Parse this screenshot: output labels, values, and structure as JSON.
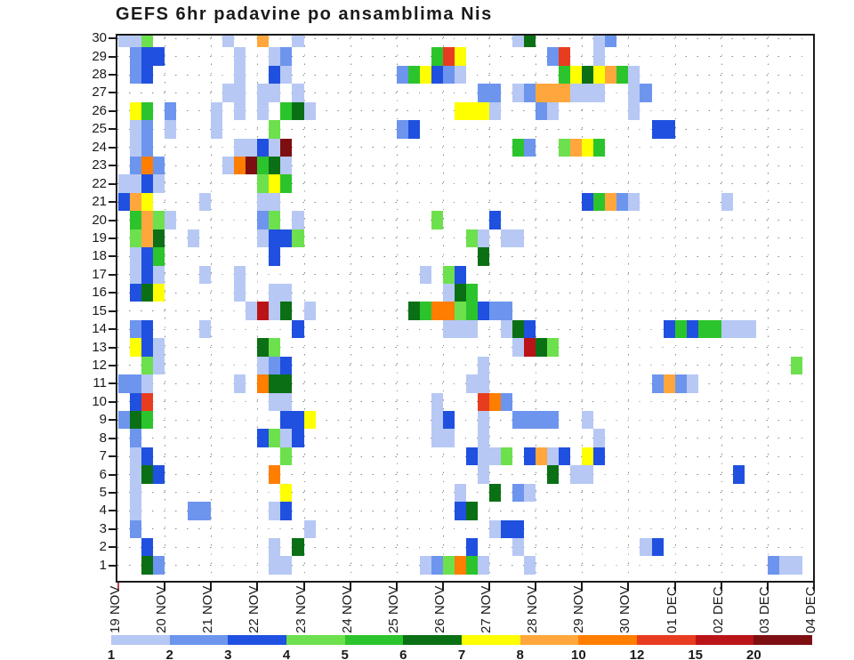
{
  "title": "GEFS 6hr padavine po ansamblima Nis",
  "chart_data": {
    "type": "heatmap",
    "title": "GEFS 6hr padavine po ansamblima Nis",
    "xlabel": "",
    "ylabel": "",
    "x_tick_labels": [
      "19 NOV",
      "20 NOV",
      "21 NOV",
      "22 NOV",
      "23 NOV",
      "24 NOV",
      "25 NOV",
      "26 NOV",
      "27 NOV",
      "28 NOV",
      "29 NOV",
      "30 NOV",
      "01 DEC",
      "02 DEC",
      "03 DEC",
      "04 DEC"
    ],
    "y_tick_labels": [
      "1",
      "2",
      "3",
      "4",
      "5",
      "6",
      "7",
      "8",
      "9",
      "10",
      "11",
      "12",
      "13",
      "14",
      "15",
      "16",
      "17",
      "18",
      "19",
      "20",
      "21",
      "22",
      "23",
      "24",
      "25",
      "26",
      "27",
      "28",
      "29",
      "30"
    ],
    "y_axis_meaning": "ensemble member",
    "x_steps_per_day": 4,
    "n_columns": 60,
    "grid": "dotted",
    "legend": {
      "position": "bottom",
      "boundary_labels": [
        "1",
        "2",
        "3",
        "4",
        "5",
        "6",
        "7",
        "8",
        "10",
        "12",
        "15",
        "20"
      ],
      "level_ranges": [
        "1-2",
        "2-3",
        "3-4",
        "4-5",
        "5-6",
        "6-7",
        "7-8",
        "8-10",
        "10-12",
        "12-15",
        "15-20",
        "20+"
      ],
      "colors": [
        "#b7c8f4",
        "#6d95ee",
        "#2050e0",
        "#6de04e",
        "#2cc42c",
        "#0b7015",
        "#ffff00",
        "#ffa73d",
        "#ff7e00",
        "#e83c20",
        "#bb1418",
        "#7d0f12"
      ]
    },
    "cells": [
      [
        30,
        0,
        1
      ],
      [
        30,
        1,
        1
      ],
      [
        30,
        2,
        4
      ],
      [
        30,
        9,
        1
      ],
      [
        30,
        12,
        8
      ],
      [
        30,
        15,
        1
      ],
      [
        30,
        34,
        1
      ],
      [
        30,
        35,
        6
      ],
      [
        30,
        41,
        1
      ],
      [
        30,
        42,
        2
      ],
      [
        29,
        1,
        2
      ],
      [
        29,
        2,
        3
      ],
      [
        29,
        3,
        3
      ],
      [
        29,
        10,
        1
      ],
      [
        29,
        13,
        1
      ],
      [
        29,
        14,
        2
      ],
      [
        29,
        27,
        5
      ],
      [
        29,
        28,
        10
      ],
      [
        29,
        29,
        7
      ],
      [
        29,
        37,
        2
      ],
      [
        29,
        38,
        10
      ],
      [
        29,
        41,
        1
      ],
      [
        28,
        1,
        2
      ],
      [
        28,
        2,
        3
      ],
      [
        28,
        10,
        1
      ],
      [
        28,
        13,
        3
      ],
      [
        28,
        14,
        1
      ],
      [
        28,
        24,
        2
      ],
      [
        28,
        25,
        5
      ],
      [
        28,
        26,
        7
      ],
      [
        28,
        27,
        3
      ],
      [
        28,
        28,
        2
      ],
      [
        28,
        29,
        1
      ],
      [
        28,
        38,
        5
      ],
      [
        28,
        39,
        7
      ],
      [
        28,
        40,
        6
      ],
      [
        28,
        41,
        7
      ],
      [
        28,
        42,
        8
      ],
      [
        28,
        43,
        5
      ],
      [
        28,
        44,
        1
      ],
      [
        27,
        9,
        1
      ],
      [
        27,
        10,
        1
      ],
      [
        27,
        12,
        1
      ],
      [
        27,
        13,
        1
      ],
      [
        27,
        15,
        1
      ],
      [
        27,
        31,
        2
      ],
      [
        27,
        32,
        2
      ],
      [
        27,
        34,
        1
      ],
      [
        27,
        35,
        2
      ],
      [
        27,
        36,
        8
      ],
      [
        27,
        37,
        8
      ],
      [
        27,
        38,
        8
      ],
      [
        27,
        39,
        1
      ],
      [
        27,
        40,
        1
      ],
      [
        27,
        41,
        1
      ],
      [
        27,
        44,
        1
      ],
      [
        27,
        45,
        2
      ],
      [
        26,
        1,
        7
      ],
      [
        26,
        2,
        5
      ],
      [
        26,
        4,
        2
      ],
      [
        26,
        8,
        1
      ],
      [
        26,
        10,
        1
      ],
      [
        26,
        12,
        1
      ],
      [
        26,
        14,
        5
      ],
      [
        26,
        15,
        6
      ],
      [
        26,
        16,
        1
      ],
      [
        26,
        29,
        7
      ],
      [
        26,
        30,
        7
      ],
      [
        26,
        31,
        7
      ],
      [
        26,
        32,
        1
      ],
      [
        26,
        36,
        2
      ],
      [
        26,
        37,
        1
      ],
      [
        26,
        44,
        1
      ],
      [
        25,
        1,
        1
      ],
      [
        25,
        2,
        2
      ],
      [
        25,
        4,
        1
      ],
      [
        25,
        8,
        1
      ],
      [
        25,
        13,
        4
      ],
      [
        25,
        24,
        2
      ],
      [
        25,
        25,
        3
      ],
      [
        25,
        46,
        3
      ],
      [
        25,
        47,
        3
      ],
      [
        24,
        1,
        1
      ],
      [
        24,
        2,
        2
      ],
      [
        24,
        10,
        1
      ],
      [
        24,
        11,
        1
      ],
      [
        24,
        12,
        3
      ],
      [
        24,
        13,
        1
      ],
      [
        24,
        14,
        12
      ],
      [
        24,
        34,
        5
      ],
      [
        24,
        35,
        2
      ],
      [
        24,
        38,
        4
      ],
      [
        24,
        39,
        8
      ],
      [
        24,
        40,
        7
      ],
      [
        24,
        41,
        5
      ],
      [
        23,
        1,
        2
      ],
      [
        23,
        2,
        9
      ],
      [
        23,
        3,
        2
      ],
      [
        23,
        9,
        1
      ],
      [
        23,
        10,
        9
      ],
      [
        23,
        11,
        12
      ],
      [
        23,
        12,
        5
      ],
      [
        23,
        13,
        6
      ],
      [
        23,
        14,
        1
      ],
      [
        22,
        0,
        1
      ],
      [
        22,
        1,
        1
      ],
      [
        22,
        2,
        3
      ],
      [
        22,
        3,
        1
      ],
      [
        22,
        12,
        4
      ],
      [
        22,
        13,
        7
      ],
      [
        22,
        14,
        5
      ],
      [
        21,
        0,
        3
      ],
      [
        21,
        1,
        8
      ],
      [
        21,
        2,
        7
      ],
      [
        21,
        7,
        1
      ],
      [
        21,
        12,
        1
      ],
      [
        21,
        13,
        1
      ],
      [
        21,
        40,
        3
      ],
      [
        21,
        41,
        5
      ],
      [
        21,
        42,
        8
      ],
      [
        21,
        43,
        2
      ],
      [
        21,
        44,
        1
      ],
      [
        21,
        52,
        1
      ],
      [
        20,
        1,
        5
      ],
      [
        20,
        2,
        8
      ],
      [
        20,
        3,
        4
      ],
      [
        20,
        4,
        1
      ],
      [
        20,
        12,
        2
      ],
      [
        20,
        13,
        4
      ],
      [
        20,
        15,
        1
      ],
      [
        20,
        27,
        4
      ],
      [
        20,
        32,
        3
      ],
      [
        19,
        1,
        4
      ],
      [
        19,
        2,
        8
      ],
      [
        19,
        3,
        6
      ],
      [
        19,
        6,
        1
      ],
      [
        19,
        12,
        1
      ],
      [
        19,
        13,
        3
      ],
      [
        19,
        14,
        3
      ],
      [
        19,
        15,
        4
      ],
      [
        19,
        30,
        4
      ],
      [
        19,
        31,
        1
      ],
      [
        19,
        33,
        1
      ],
      [
        19,
        34,
        1
      ],
      [
        18,
        1,
        1
      ],
      [
        18,
        2,
        3
      ],
      [
        18,
        3,
        5
      ],
      [
        18,
        13,
        3
      ],
      [
        18,
        31,
        6
      ],
      [
        17,
        1,
        1
      ],
      [
        17,
        2,
        3
      ],
      [
        17,
        3,
        1
      ],
      [
        17,
        7,
        1
      ],
      [
        17,
        10,
        1
      ],
      [
        17,
        26,
        1
      ],
      [
        17,
        28,
        4
      ],
      [
        17,
        29,
        3
      ],
      [
        16,
        1,
        3
      ],
      [
        16,
        2,
        6
      ],
      [
        16,
        3,
        7
      ],
      [
        16,
        10,
        1
      ],
      [
        16,
        13,
        1
      ],
      [
        16,
        14,
        1
      ],
      [
        16,
        28,
        1
      ],
      [
        16,
        29,
        6
      ],
      [
        16,
        30,
        5
      ],
      [
        15,
        11,
        1
      ],
      [
        15,
        12,
        11
      ],
      [
        15,
        13,
        1
      ],
      [
        15,
        14,
        6
      ],
      [
        15,
        16,
        1
      ],
      [
        15,
        25,
        6
      ],
      [
        15,
        26,
        5
      ],
      [
        15,
        27,
        9
      ],
      [
        15,
        28,
        9
      ],
      [
        15,
        29,
        4
      ],
      [
        15,
        30,
        5
      ],
      [
        15,
        31,
        3
      ],
      [
        15,
        32,
        2
      ],
      [
        15,
        33,
        2
      ],
      [
        14,
        1,
        2
      ],
      [
        14,
        2,
        3
      ],
      [
        14,
        7,
        1
      ],
      [
        14,
        15,
        3
      ],
      [
        14,
        28,
        1
      ],
      [
        14,
        29,
        1
      ],
      [
        14,
        30,
        1
      ],
      [
        14,
        33,
        1
      ],
      [
        14,
        34,
        6
      ],
      [
        14,
        35,
        3
      ],
      [
        14,
        47,
        3
      ],
      [
        14,
        48,
        5
      ],
      [
        14,
        49,
        3
      ],
      [
        14,
        50,
        5
      ],
      [
        14,
        51,
        5
      ],
      [
        14,
        52,
        1
      ],
      [
        14,
        53,
        1
      ],
      [
        14,
        54,
        1
      ],
      [
        13,
        1,
        7
      ],
      [
        13,
        2,
        3
      ],
      [
        13,
        3,
        1
      ],
      [
        13,
        12,
        6
      ],
      [
        13,
        13,
        4
      ],
      [
        13,
        34,
        1
      ],
      [
        13,
        35,
        11
      ],
      [
        13,
        36,
        6
      ],
      [
        13,
        37,
        4
      ],
      [
        12,
        2,
        4
      ],
      [
        12,
        3,
        1
      ],
      [
        12,
        12,
        1
      ],
      [
        12,
        13,
        2
      ],
      [
        12,
        14,
        3
      ],
      [
        12,
        31,
        1
      ],
      [
        12,
        58,
        4
      ],
      [
        11,
        0,
        2
      ],
      [
        11,
        1,
        2
      ],
      [
        11,
        2,
        1
      ],
      [
        11,
        10,
        1
      ],
      [
        11,
        12,
        9
      ],
      [
        11,
        13,
        6
      ],
      [
        11,
        14,
        6
      ],
      [
        11,
        30,
        1
      ],
      [
        11,
        31,
        1
      ],
      [
        11,
        46,
        2
      ],
      [
        11,
        47,
        8
      ],
      [
        11,
        48,
        2
      ],
      [
        11,
        49,
        1
      ],
      [
        10,
        1,
        3
      ],
      [
        10,
        2,
        10
      ],
      [
        10,
        13,
        1
      ],
      [
        10,
        14,
        1
      ],
      [
        10,
        27,
        1
      ],
      [
        10,
        31,
        10
      ],
      [
        10,
        32,
        9
      ],
      [
        10,
        33,
        2
      ],
      [
        9,
        0,
        2
      ],
      [
        9,
        1,
        6
      ],
      [
        9,
        2,
        5
      ],
      [
        9,
        14,
        3
      ],
      [
        9,
        15,
        3
      ],
      [
        9,
        16,
        7
      ],
      [
        9,
        27,
        1
      ],
      [
        9,
        28,
        3
      ],
      [
        9,
        31,
        1
      ],
      [
        9,
        34,
        2
      ],
      [
        9,
        35,
        2
      ],
      [
        9,
        36,
        2
      ],
      [
        9,
        37,
        2
      ],
      [
        9,
        40,
        1
      ],
      [
        8,
        1,
        2
      ],
      [
        8,
        12,
        3
      ],
      [
        8,
        13,
        4
      ],
      [
        8,
        14,
        1
      ],
      [
        8,
        15,
        3
      ],
      [
        8,
        27,
        1
      ],
      [
        8,
        28,
        1
      ],
      [
        8,
        31,
        1
      ],
      [
        8,
        41,
        1
      ],
      [
        7,
        1,
        1
      ],
      [
        7,
        2,
        3
      ],
      [
        7,
        14,
        4
      ],
      [
        7,
        30,
        3
      ],
      [
        7,
        31,
        1
      ],
      [
        7,
        32,
        1
      ],
      [
        7,
        33,
        4
      ],
      [
        7,
        35,
        3
      ],
      [
        7,
        36,
        8
      ],
      [
        7,
        37,
        1
      ],
      [
        7,
        38,
        3
      ],
      [
        7,
        40,
        7
      ],
      [
        7,
        41,
        3
      ],
      [
        6,
        1,
        1
      ],
      [
        6,
        2,
        6
      ],
      [
        6,
        3,
        3
      ],
      [
        6,
        13,
        9
      ],
      [
        6,
        31,
        1
      ],
      [
        6,
        37,
        6
      ],
      [
        6,
        39,
        1
      ],
      [
        6,
        40,
        1
      ],
      [
        6,
        53,
        3
      ],
      [
        5,
        1,
        1
      ],
      [
        5,
        14,
        7
      ],
      [
        5,
        29,
        1
      ],
      [
        5,
        32,
        6
      ],
      [
        5,
        34,
        2
      ],
      [
        5,
        35,
        1
      ],
      [
        4,
        1,
        1
      ],
      [
        4,
        6,
        2
      ],
      [
        4,
        7,
        2
      ],
      [
        4,
        13,
        1
      ],
      [
        4,
        14,
        3
      ],
      [
        4,
        29,
        3
      ],
      [
        4,
        30,
        6
      ],
      [
        3,
        1,
        2
      ],
      [
        3,
        16,
        1
      ],
      [
        3,
        32,
        1
      ],
      [
        3,
        33,
        3
      ],
      [
        3,
        34,
        3
      ],
      [
        2,
        2,
        3
      ],
      [
        2,
        13,
        1
      ],
      [
        2,
        15,
        6
      ],
      [
        2,
        30,
        3
      ],
      [
        2,
        34,
        1
      ],
      [
        2,
        45,
        1
      ],
      [
        2,
        46,
        3
      ],
      [
        1,
        2,
        6
      ],
      [
        1,
        3,
        2
      ],
      [
        1,
        13,
        1
      ],
      [
        1,
        14,
        1
      ],
      [
        1,
        26,
        1
      ],
      [
        1,
        27,
        2
      ],
      [
        1,
        28,
        4
      ],
      [
        1,
        29,
        9
      ],
      [
        1,
        30,
        5
      ],
      [
        1,
        31,
        1
      ],
      [
        1,
        35,
        1
      ],
      [
        1,
        56,
        2
      ],
      [
        1,
        57,
        1
      ],
      [
        1,
        58,
        1
      ]
    ]
  }
}
